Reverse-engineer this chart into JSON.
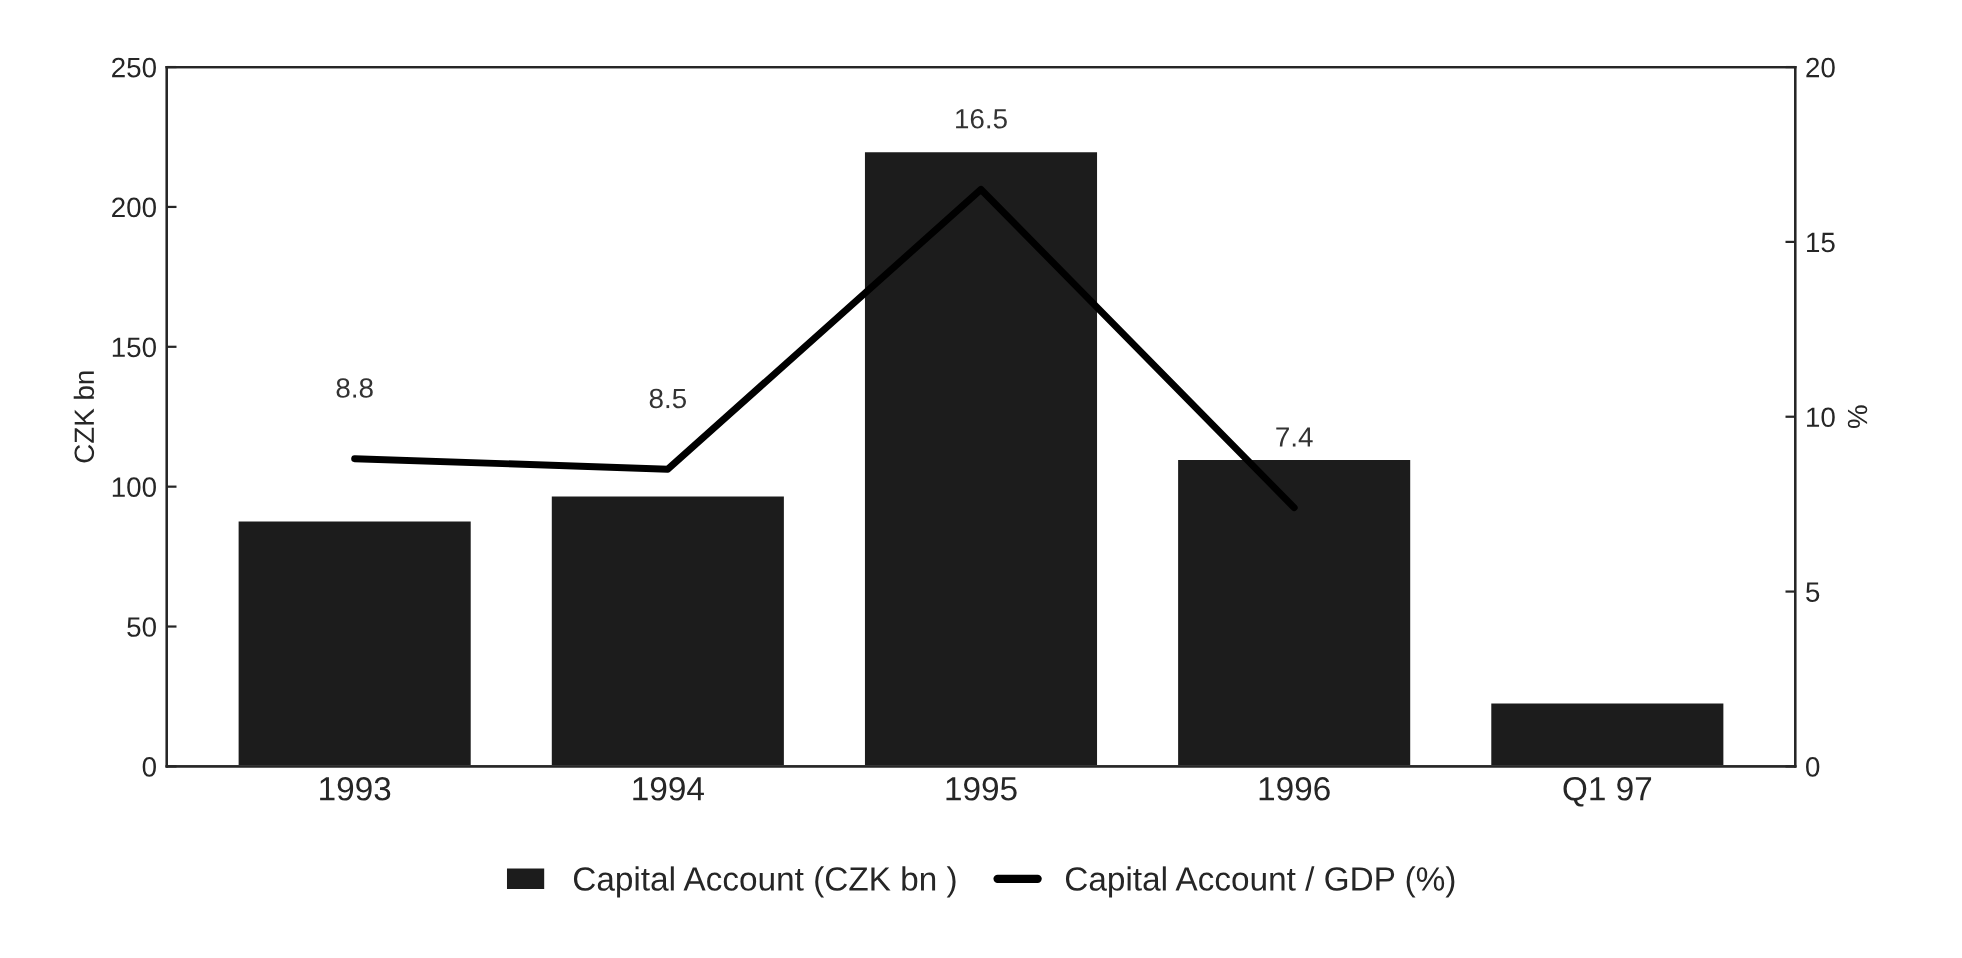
{
  "chart_data": {
    "type": "bar",
    "categories": [
      "1993",
      "1994",
      "1995",
      "1996",
      "Q1 97"
    ],
    "ylabel": "CZK bn",
    "y2label": "%",
    "series": [
      {
        "name": "Capital Account (CZK bn )",
        "color": "#1c1c1c",
        "values": [
          88,
          97,
          220,
          110,
          23
        ]
      },
      {
        "name": "Capital Account / GDP (%)",
        "type": "line",
        "axis": "y2",
        "color": "#000000",
        "values": [
          8.8,
          8.5,
          16.5,
          7.4,
          null
        ],
        "value_labels": [
          "8.8",
          "8.5",
          "16.5",
          "7.4",
          null
        ]
      }
    ],
    "ylim": [
      0,
      250
    ],
    "yticks": [
      0,
      50,
      100,
      150,
      200,
      250
    ],
    "y2lim": [
      0,
      20
    ],
    "y2ticks": [
      0,
      5,
      10,
      15,
      20
    ],
    "grid": false,
    "legend": "bottom",
    "marker": "none",
    "line_style": "solid"
  }
}
